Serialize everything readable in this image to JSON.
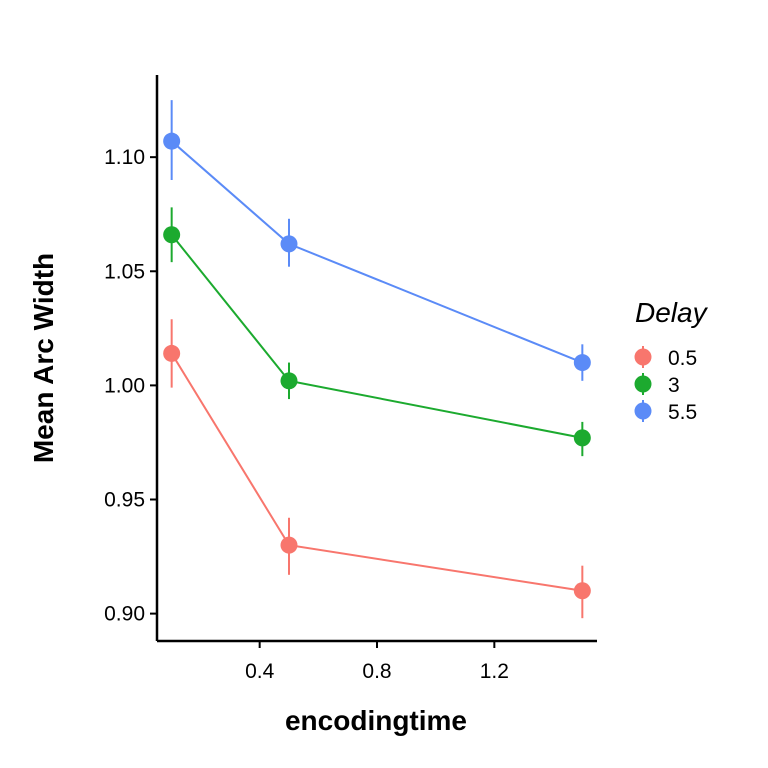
{
  "chart_data": {
    "type": "line",
    "title": "",
    "xlabel": "encodingtime",
    "ylabel": "Mean Arc Width",
    "x": [
      0.1,
      0.5,
      1.5
    ],
    "xlim": [
      0.05,
      1.55
    ],
    "ylim": [
      0.888,
      1.136
    ],
    "xticks": [
      0.4,
      0.8,
      1.2
    ],
    "xtick_labels": [
      "0.4",
      "0.8",
      "1.2"
    ],
    "yticks": [
      0.9,
      0.95,
      1.0,
      1.05,
      1.1
    ],
    "ytick_labels": [
      "0.90",
      "0.95",
      "1.00",
      "1.05",
      "1.10"
    ],
    "grid": false,
    "error_bars": true,
    "legend": {
      "title": "Delay",
      "position": "right"
    },
    "series": [
      {
        "name": "0.5",
        "color": "#F8766D",
        "values": [
          1.014,
          0.93,
          0.91
        ],
        "err_low": [
          0.999,
          0.917,
          0.898
        ],
        "err_high": [
          1.029,
          0.942,
          0.921
        ]
      },
      {
        "name": "3",
        "color": "#1CAA2F",
        "values": [
          1.066,
          1.002,
          0.977
        ],
        "err_low": [
          1.054,
          0.994,
          0.969
        ],
        "err_high": [
          1.078,
          1.01,
          0.984
        ]
      },
      {
        "name": "5.5",
        "color": "#5B8BF7",
        "values": [
          1.107,
          1.062,
          1.01
        ],
        "err_low": [
          1.09,
          1.052,
          1.002
        ],
        "err_high": [
          1.125,
          1.073,
          1.018
        ]
      }
    ]
  }
}
